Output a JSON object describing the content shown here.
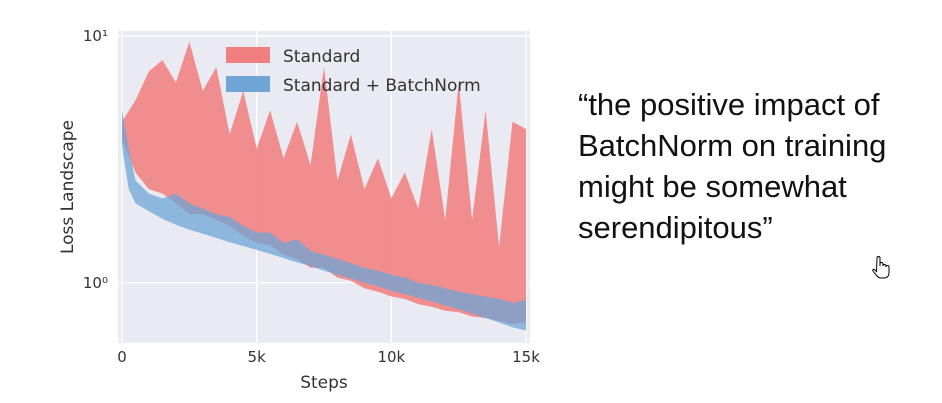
{
  "quote": {
    "lines": [
      "“the positive impact of",
      "BatchNorm on training",
      "might be somewhat",
      "serendipitous”"
    ]
  },
  "cursor": {
    "icon": "hand-pointer-icon"
  },
  "chart_data": {
    "type": "area",
    "title": "",
    "xlabel": "Steps",
    "ylabel": "Loss Landscape",
    "xlim": [
      0,
      15000
    ],
    "ylim": [
      0.57,
      10.5
    ],
    "yscale": "log",
    "grid": true,
    "legend_position": "top-right",
    "xticks": [
      0,
      5000,
      10000,
      15000
    ],
    "xtick_labels": [
      "0",
      "5k",
      "10k",
      "15k"
    ],
    "yticks": [
      1,
      10
    ],
    "ytick_labels": [
      "10⁰",
      "10¹"
    ],
    "colors": {
      "standard": "#f08080",
      "batchnorm": "#6fa6d6",
      "overlap": "#7a6f9c",
      "background": "#eaeaf2"
    },
    "series": [
      {
        "name": "Standard",
        "x": [
          0,
          500,
          1000,
          1500,
          2000,
          2500,
          3000,
          3500,
          4000,
          4500,
          5000,
          5500,
          6000,
          6500,
          7000,
          7500,
          8000,
          8500,
          9000,
          9500,
          10000,
          10500,
          11000,
          11500,
          12000,
          12500,
          13000,
          13500,
          14000,
          14500,
          15000
        ],
        "upper": [
          4.5,
          5.5,
          7.2,
          8.0,
          6.5,
          9.5,
          6.0,
          7.5,
          4.0,
          6.0,
          3.5,
          5.0,
          3.2,
          4.5,
          3.0,
          7.5,
          2.6,
          4.0,
          2.4,
          3.2,
          2.2,
          2.8,
          2.0,
          4.2,
          1.8,
          6.5,
          1.8,
          5.0,
          1.4,
          4.5,
          4.2
        ],
        "lower": [
          3.8,
          2.8,
          2.4,
          2.3,
          2.1,
          1.9,
          1.9,
          1.8,
          1.7,
          1.55,
          1.45,
          1.42,
          1.3,
          1.25,
          1.15,
          1.15,
          1.05,
          1.02,
          0.95,
          0.92,
          0.88,
          0.86,
          0.82,
          0.8,
          0.77,
          0.76,
          0.73,
          0.72,
          0.7,
          0.68,
          0.69
        ]
      },
      {
        "name": "Standard + BatchNorm",
        "x": [
          0,
          250,
          500,
          1000,
          1500,
          2000,
          2500,
          3000,
          3500,
          4000,
          4500,
          5000,
          5500,
          6000,
          6500,
          7000,
          7500,
          8000,
          8500,
          9000,
          9500,
          10000,
          10500,
          11000,
          11500,
          12000,
          12500,
          13000,
          13500,
          14000,
          14500,
          15000
        ],
        "upper": [
          5.0,
          3.5,
          2.6,
          2.3,
          2.2,
          2.3,
          2.1,
          2.0,
          1.9,
          1.85,
          1.7,
          1.6,
          1.6,
          1.45,
          1.5,
          1.35,
          1.3,
          1.25,
          1.2,
          1.15,
          1.12,
          1.08,
          1.05,
          1.0,
          0.98,
          0.95,
          0.92,
          0.9,
          0.88,
          0.86,
          0.83,
          0.85
        ],
        "lower": [
          3.6,
          2.4,
          2.1,
          1.95,
          1.82,
          1.72,
          1.64,
          1.58,
          1.52,
          1.46,
          1.41,
          1.36,
          1.31,
          1.26,
          1.21,
          1.17,
          1.12,
          1.08,
          1.04,
          1.0,
          0.97,
          0.93,
          0.9,
          0.87,
          0.84,
          0.81,
          0.78,
          0.75,
          0.72,
          0.69,
          0.66,
          0.64
        ]
      }
    ]
  }
}
